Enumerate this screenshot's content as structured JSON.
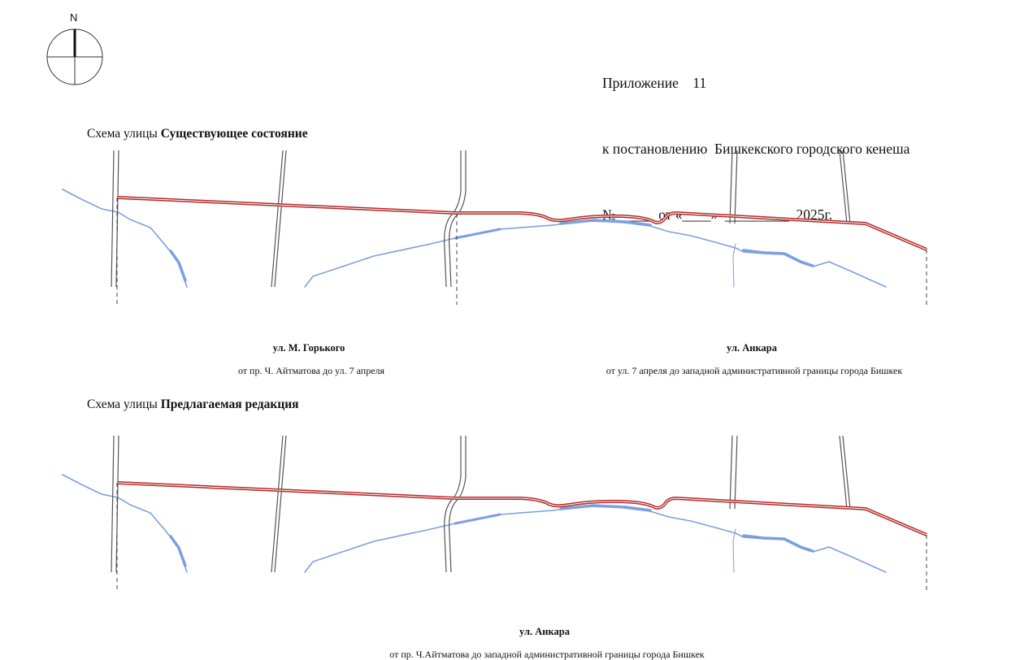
{
  "header": {
    "line1": "Приложение    11",
    "line2": "к постановлению  Бишкекского городского кенеша",
    "line3": "№_____  от «____»  _________  2025г."
  },
  "compass": {
    "north_label": "N"
  },
  "section_existing": {
    "prefix": "Схема улицы ",
    "title": "Существующее состояние",
    "labels": [
      {
        "name": "ул. М. Горького",
        "desc": "от пр. Ч. Айтматова до ул. 7 апреля"
      },
      {
        "name": "ул. Анкара",
        "desc": "от ул. 7 апреля до западной административной границы города Бишкек"
      }
    ]
  },
  "section_proposed": {
    "prefix": "Схема улицы ",
    "title": "Предлагаемая редакция",
    "labels": [
      {
        "name": "ул. Анкара",
        "desc": "от пр. Ч.Айтматова до западной административной границы города Бишкек"
      }
    ]
  },
  "colors": {
    "street_highlight": "#b52a2a",
    "river": "#7b9fe0",
    "road_outline": "#555555",
    "boundary_dash": "#444444"
  }
}
